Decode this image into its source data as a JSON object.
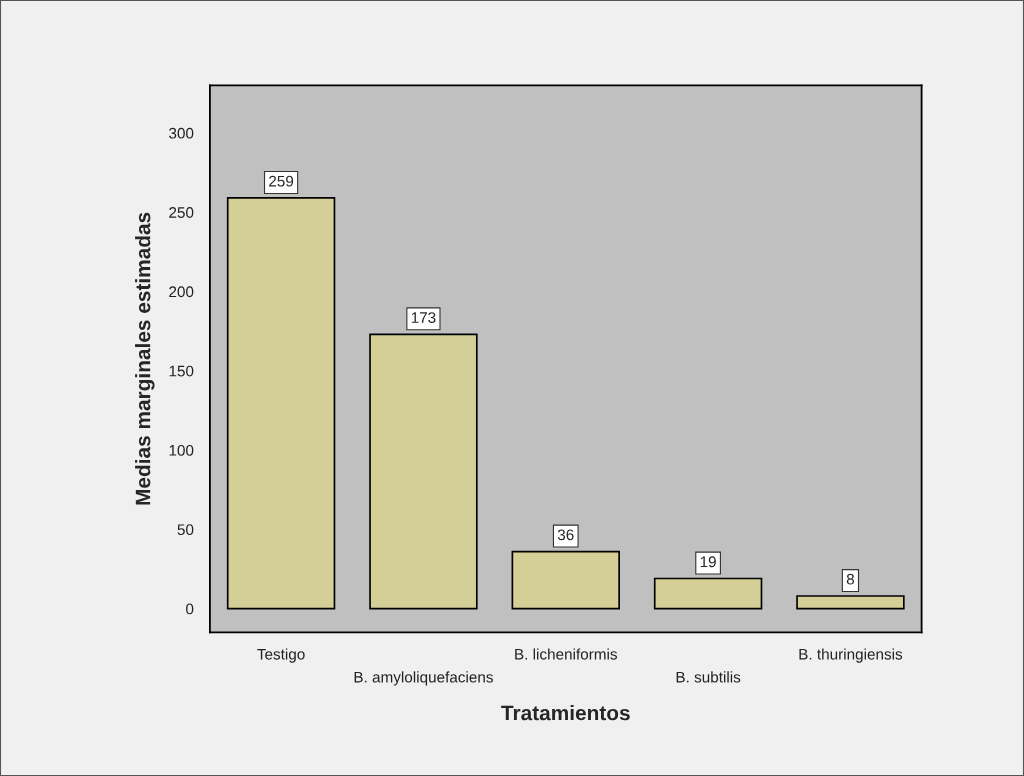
{
  "chart_data": {
    "type": "bar",
    "xlabel": "Tratamientos",
    "ylabel": "Medias marginales estimadas",
    "categories": [
      "Testigo",
      "B. amyloliquefaciens",
      "B. licheniformis",
      "B. subtilis",
      "B. thuringiensis"
    ],
    "values": [
      259,
      173,
      36,
      19,
      8
    ],
    "color": "#d4cf96",
    "ylim": [
      -15,
      330
    ],
    "yticks": [
      0,
      50,
      100,
      150,
      200,
      250,
      300
    ],
    "data_labels": true,
    "grid": false,
    "legend": false
  }
}
